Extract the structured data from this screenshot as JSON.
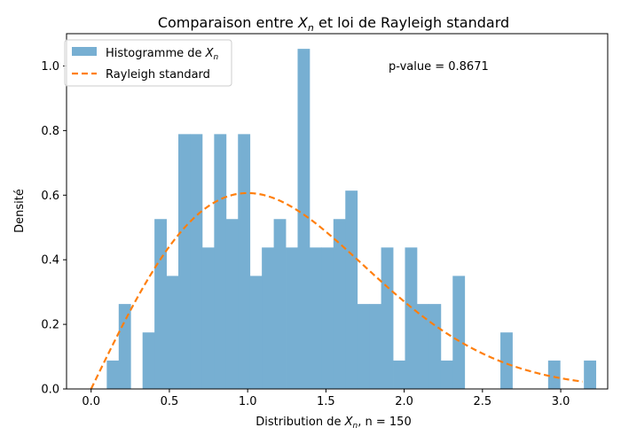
{
  "chart_data": {
    "type": "bar",
    "title": {
      "pre": "Comparaison entre ",
      "var": "X",
      "sub": "n",
      "post": " et loi de Rayleigh standard"
    },
    "xlabel": {
      "pre": "Distribution de ",
      "var": "X",
      "sub": "n",
      "post": ", n = 150"
    },
    "ylabel": "Densité",
    "xlim": [
      -0.157,
      3.3
    ],
    "ylim": [
      0,
      1.1
    ],
    "xticks": [
      0.0,
      0.5,
      1.0,
      1.5,
      2.0,
      2.5,
      3.0
    ],
    "xtick_labels": [
      "0.0",
      "0.5",
      "1.0",
      "1.5",
      "2.0",
      "2.5",
      "3.0"
    ],
    "yticks": [
      0.0,
      0.2,
      0.4,
      0.6,
      0.8,
      1.0
    ],
    "ytick_labels": [
      "0.0",
      "0.2",
      "0.4",
      "0.6",
      "0.8",
      "1.0"
    ],
    "annotation": "p-value = 0.8671",
    "legend_position": "top-left",
    "grid": false,
    "colors": {
      "histogram": "#77afd2",
      "curve": "#ff7f0e"
    },
    "histogram": {
      "name": {
        "pre": "Histogramme de ",
        "var": "X",
        "sub": "n"
      },
      "bin_start": 0.1,
      "bin_width": 0.0762,
      "densities": [
        0.088,
        0.263,
        0.0,
        0.175,
        0.526,
        0.35,
        0.789,
        0.789,
        0.438,
        0.789,
        0.526,
        0.789,
        0.35,
        0.438,
        0.526,
        0.438,
        1.053,
        0.438,
        0.438,
        0.526,
        0.614,
        0.263,
        0.263,
        0.438,
        0.088,
        0.438,
        0.263,
        0.263,
        0.088,
        0.35,
        0.0,
        0.0,
        0.0,
        0.175,
        0.0,
        0.0,
        0.0,
        0.088,
        0.0,
        0.0,
        0.088
      ]
    },
    "curve": {
      "name": "Rayleigh standard",
      "x_range": [
        0.0,
        3.14
      ]
    }
  }
}
